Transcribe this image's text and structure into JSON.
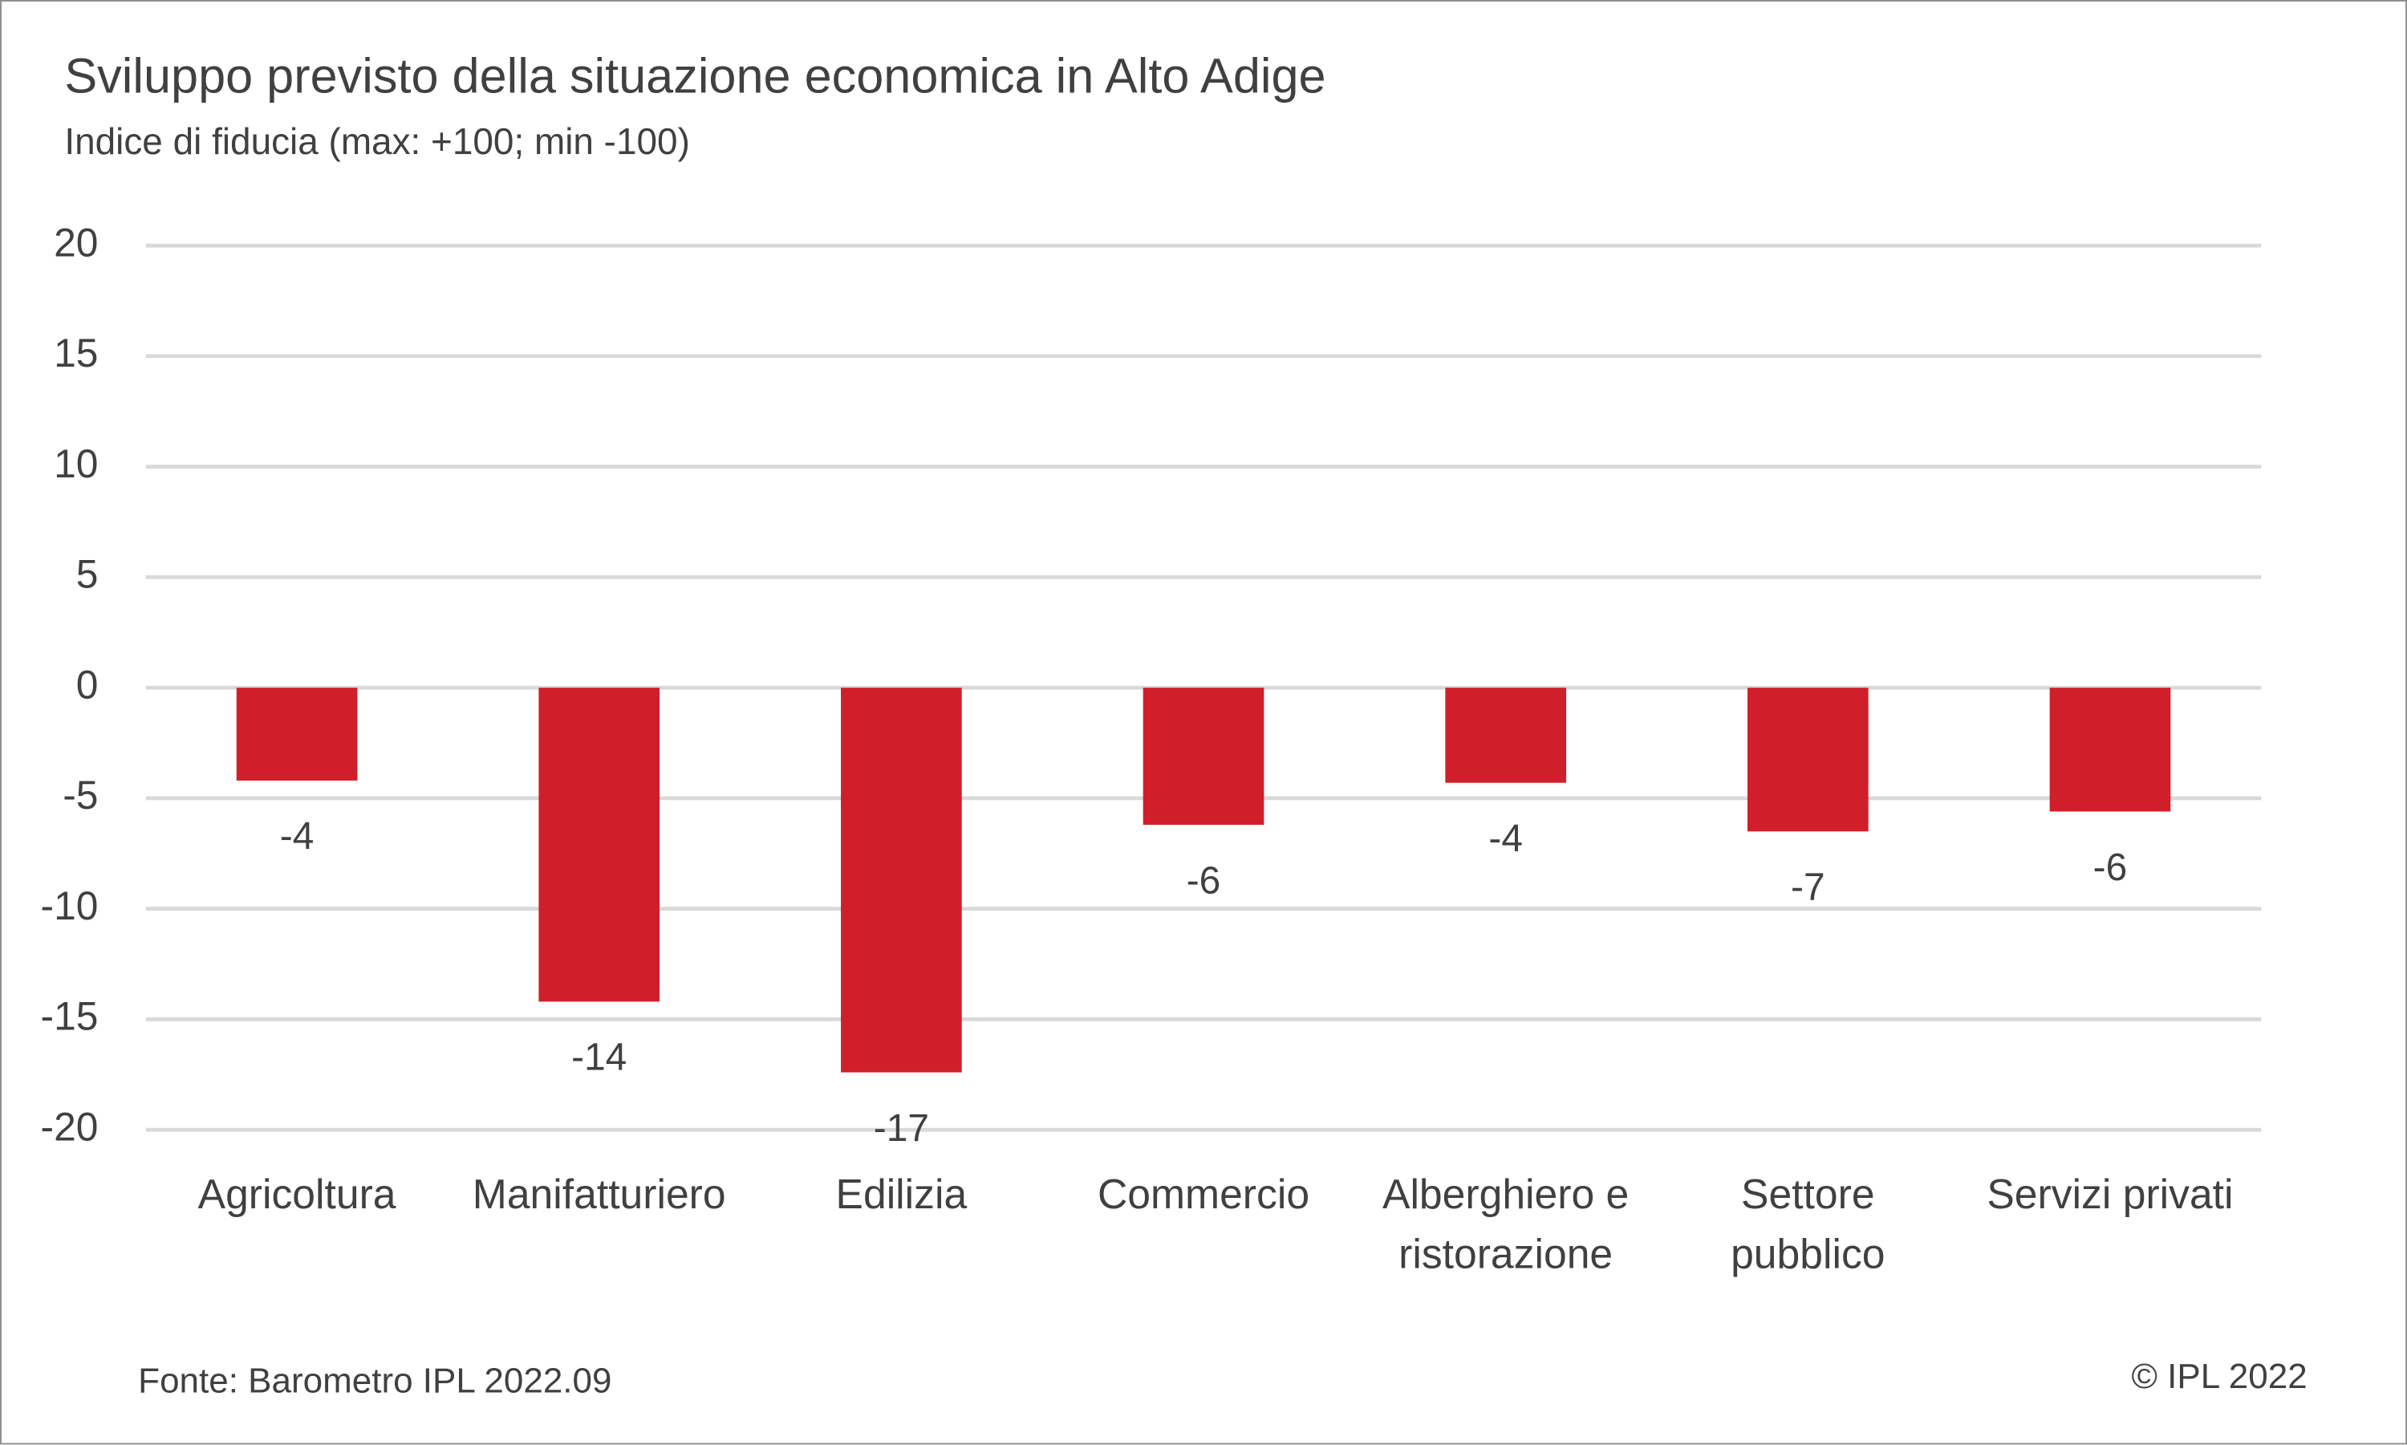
{
  "chart_data": {
    "type": "bar",
    "title": "Sviluppo previsto della situazione economica in Alto Adige",
    "subtitle": "Indice di fiducia (max: +100; min -100)",
    "categories": [
      "Agricoltura",
      "Manifatturiero",
      "Edilizia",
      "Commercio",
      "Alberghiero e ristorazione",
      "Settore pubblico",
      "Servizi privati"
    ],
    "values": [
      -4.2,
      -14.2,
      -17.4,
      -6.2,
      -4.3,
      -6.5,
      -5.6
    ],
    "value_labels": [
      "-4",
      "-14",
      "-17",
      "-6",
      "-4",
      "-7",
      "-6"
    ],
    "color": "#d01f2a",
    "ylim": [
      -20,
      20
    ],
    "yticks": [
      -20,
      -15,
      -10,
      -5,
      0,
      5,
      10,
      15,
      20
    ],
    "grid": true,
    "source": "Fonte: Barometro IPL 2022.09",
    "copyright": "© IPL 2022"
  }
}
